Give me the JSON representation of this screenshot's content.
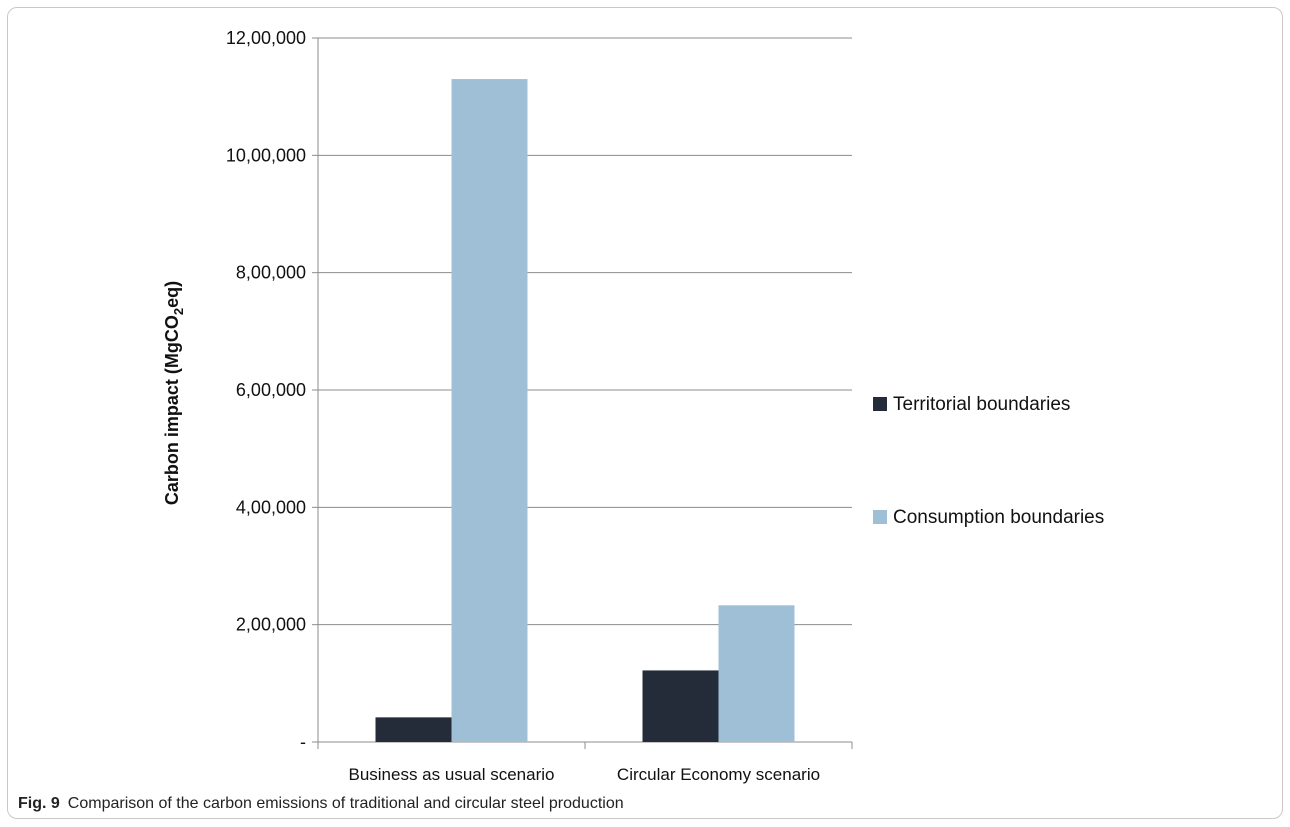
{
  "figure": {
    "label": "Fig. 9",
    "caption": "Comparison of the carbon emissions of traditional and circular steel production"
  },
  "chart_data": {
    "type": "bar",
    "categories": [
      "Business as usual scenario",
      "Circular Economy scenario"
    ],
    "series": [
      {
        "name": "Territorial boundaries",
        "color": "#232c38",
        "values": [
          42000,
          122000
        ]
      },
      {
        "name": "Consumption boundaries",
        "color": "#9fbfd7",
        "values": [
          1130000,
          233000
        ]
      }
    ],
    "ylabel": "Carbon impact (MgCO",
    "ylabel_subscript": "2",
    "ylabel_suffix": "eq)",
    "ylim": [
      0,
      1200000
    ],
    "yticks": [
      0,
      200000,
      400000,
      600000,
      800000,
      1000000,
      1200000
    ],
    "ytick_labels": [
      "-",
      "2,00,000",
      "4,00,000",
      "6,00,000",
      "8,00,000",
      "10,00,000",
      "12,00,000"
    ],
    "grid": true,
    "legend_position": "right"
  }
}
